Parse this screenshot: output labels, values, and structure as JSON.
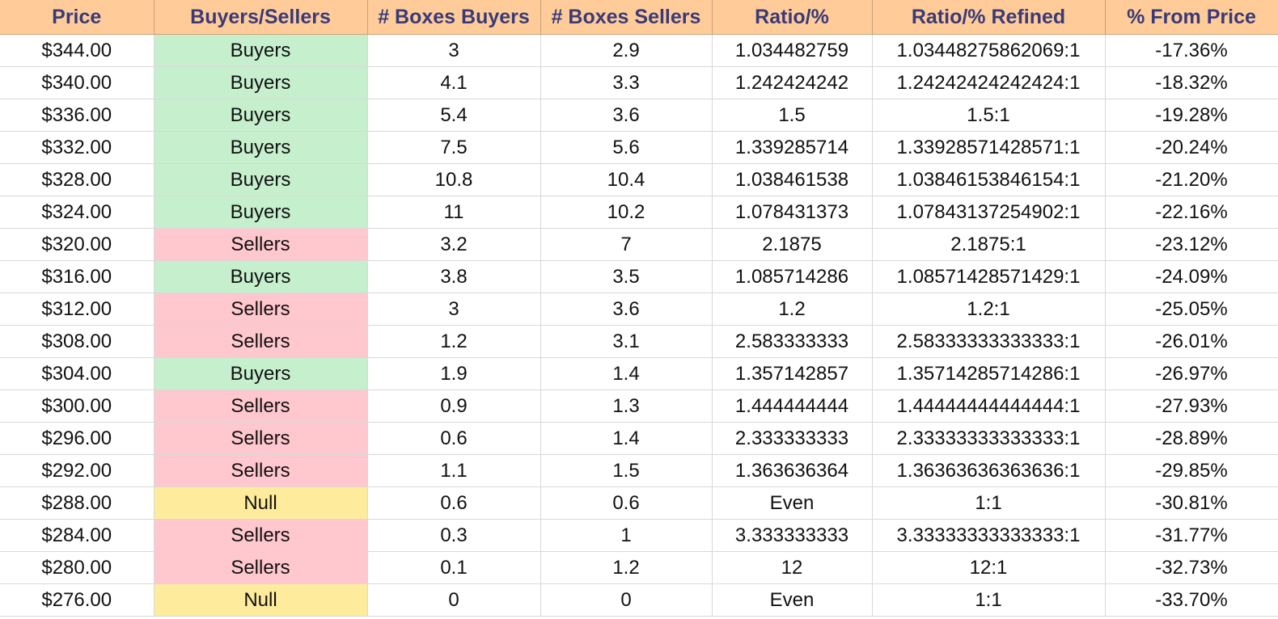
{
  "columns": [
    "Price",
    "Buyers/Sellers",
    "# Boxes Buyers",
    "# Boxes Sellers",
    "Ratio/%",
    "Ratio/% Refined",
    "% From Price"
  ],
  "colors": {
    "header_bg": "#ffcc99",
    "header_text": "#3a3a78",
    "buyers_bg": "#c6efce",
    "buyers_text": "#006100",
    "sellers_bg": "#ffc7ce",
    "sellers_text": "#9c0006",
    "null_bg": "#ffeb9c",
    "null_text": "#9c5700"
  },
  "rows": [
    {
      "price": "$344.00",
      "side": "Buyers",
      "boxes_buyers": "3",
      "boxes_sellers": "2.9",
      "ratio": "1.034482759",
      "ratio_refined": "1.03448275862069:1",
      "from_price": "-17.36%"
    },
    {
      "price": "$340.00",
      "side": "Buyers",
      "boxes_buyers": "4.1",
      "boxes_sellers": "3.3",
      "ratio": "1.242424242",
      "ratio_refined": "1.24242424242424:1",
      "from_price": "-18.32%"
    },
    {
      "price": "$336.00",
      "side": "Buyers",
      "boxes_buyers": "5.4",
      "boxes_sellers": "3.6",
      "ratio": "1.5",
      "ratio_refined": "1.5:1",
      "from_price": "-19.28%"
    },
    {
      "price": "$332.00",
      "side": "Buyers",
      "boxes_buyers": "7.5",
      "boxes_sellers": "5.6",
      "ratio": "1.339285714",
      "ratio_refined": "1.33928571428571:1",
      "from_price": "-20.24%"
    },
    {
      "price": "$328.00",
      "side": "Buyers",
      "boxes_buyers": "10.8",
      "boxes_sellers": "10.4",
      "ratio": "1.038461538",
      "ratio_refined": "1.03846153846154:1",
      "from_price": "-21.20%"
    },
    {
      "price": "$324.00",
      "side": "Buyers",
      "boxes_buyers": "11",
      "boxes_sellers": "10.2",
      "ratio": "1.078431373",
      "ratio_refined": "1.07843137254902:1",
      "from_price": "-22.16%"
    },
    {
      "price": "$320.00",
      "side": "Sellers",
      "boxes_buyers": "3.2",
      "boxes_sellers": "7",
      "ratio": "2.1875",
      "ratio_refined": "2.1875:1",
      "from_price": "-23.12%"
    },
    {
      "price": "$316.00",
      "side": "Buyers",
      "boxes_buyers": "3.8",
      "boxes_sellers": "3.5",
      "ratio": "1.085714286",
      "ratio_refined": "1.08571428571429:1",
      "from_price": "-24.09%"
    },
    {
      "price": "$312.00",
      "side": "Sellers",
      "boxes_buyers": "3",
      "boxes_sellers": "3.6",
      "ratio": "1.2",
      "ratio_refined": "1.2:1",
      "from_price": "-25.05%"
    },
    {
      "price": "$308.00",
      "side": "Sellers",
      "boxes_buyers": "1.2",
      "boxes_sellers": "3.1",
      "ratio": "2.583333333",
      "ratio_refined": "2.58333333333333:1",
      "from_price": "-26.01%"
    },
    {
      "price": "$304.00",
      "side": "Buyers",
      "boxes_buyers": "1.9",
      "boxes_sellers": "1.4",
      "ratio": "1.357142857",
      "ratio_refined": "1.35714285714286:1",
      "from_price": "-26.97%"
    },
    {
      "price": "$300.00",
      "side": "Sellers",
      "boxes_buyers": "0.9",
      "boxes_sellers": "1.3",
      "ratio": "1.444444444",
      "ratio_refined": "1.44444444444444:1",
      "from_price": "-27.93%"
    },
    {
      "price": "$296.00",
      "side": "Sellers",
      "boxes_buyers": "0.6",
      "boxes_sellers": "1.4",
      "ratio": "2.333333333",
      "ratio_refined": "2.33333333333333:1",
      "from_price": "-28.89%"
    },
    {
      "price": "$292.00",
      "side": "Sellers",
      "boxes_buyers": "1.1",
      "boxes_sellers": "1.5",
      "ratio": "1.363636364",
      "ratio_refined": "1.36363636363636:1",
      "from_price": "-29.85%"
    },
    {
      "price": "$288.00",
      "side": "Null",
      "boxes_buyers": "0.6",
      "boxes_sellers": "0.6",
      "ratio": "Even",
      "ratio_refined": "1:1",
      "from_price": "-30.81%"
    },
    {
      "price": "$284.00",
      "side": "Sellers",
      "boxes_buyers": "0.3",
      "boxes_sellers": "1",
      "ratio": "3.333333333",
      "ratio_refined": "3.33333333333333:1",
      "from_price": "-31.77%"
    },
    {
      "price": "$280.00",
      "side": "Sellers",
      "boxes_buyers": "0.1",
      "boxes_sellers": "1.2",
      "ratio": "12",
      "ratio_refined": "12:1",
      "from_price": "-32.73%"
    },
    {
      "price": "$276.00",
      "side": "Null",
      "boxes_buyers": "0",
      "boxes_sellers": "0",
      "ratio": "Even",
      "ratio_refined": "1:1",
      "from_price": "-33.70%"
    }
  ]
}
